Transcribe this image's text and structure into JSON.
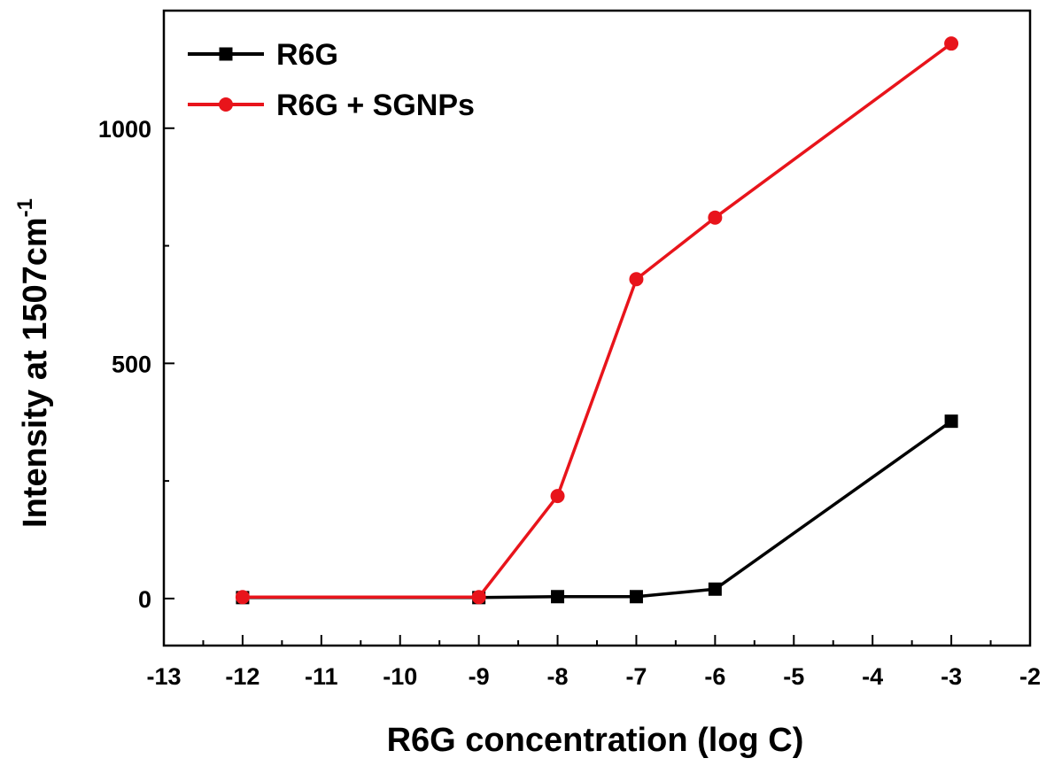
{
  "colors": {
    "r6g": "#000000",
    "r6g_sgnps": "#e8141b",
    "axes": "#000000",
    "background": "#ffffff"
  },
  "chart_data": {
    "type": "line",
    "title": "",
    "xlabel": "R6G concentration (log C)",
    "ylabel": "Intensity at 1507cm",
    "ylabel_superscript": "-1",
    "xlim": [
      -13,
      -2
    ],
    "ylim": [
      -100,
      1250
    ],
    "xticks": [
      -13,
      -12,
      -11,
      -10,
      -9,
      -8,
      -7,
      -6,
      -5,
      -4,
      -3,
      -2
    ],
    "yticks": [
      0,
      500,
      1000
    ],
    "grid": false,
    "legend_position": "top-left",
    "series": [
      {
        "name": "R6G",
        "color": "#000000",
        "marker": "square",
        "x": [
          -12,
          -9,
          -8,
          -7,
          -6,
          -3
        ],
        "y": [
          2,
          2,
          4,
          4,
          20,
          377
        ]
      },
      {
        "name": "R6G + SGNPs",
        "color": "#e8141b",
        "marker": "circle",
        "x": [
          -12,
          -9,
          -8,
          -7,
          -6,
          -3
        ],
        "y": [
          3,
          3,
          218,
          679,
          810,
          1180
        ]
      }
    ]
  }
}
